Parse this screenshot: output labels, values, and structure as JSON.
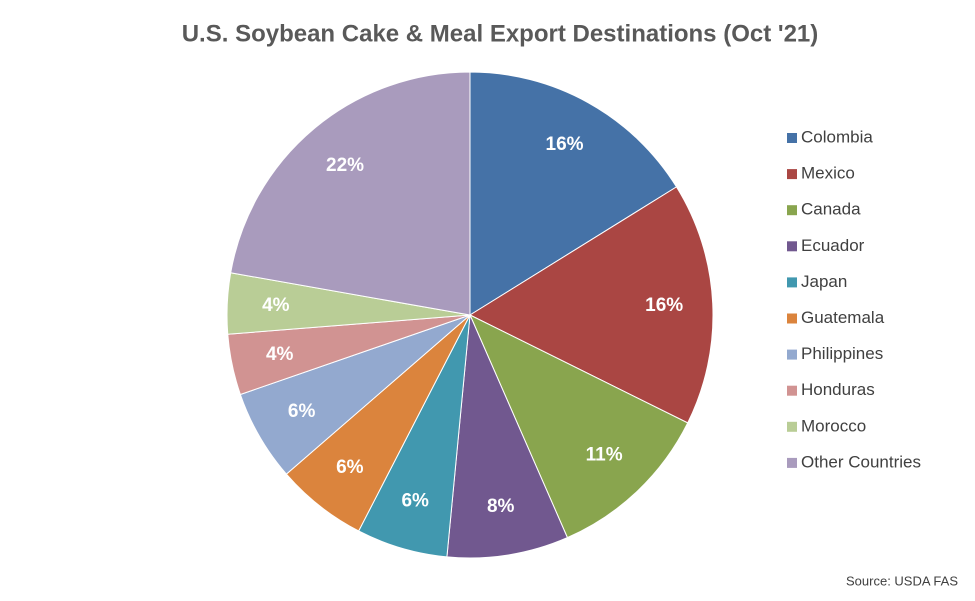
{
  "chart_data": {
    "type": "pie",
    "title": "U.S. Soybean Cake & Meal Export Destinations (Oct '21)",
    "categories": [
      "Colombia",
      "Mexico",
      "Canada",
      "Ecuador",
      "Japan",
      "Guatemala",
      "Philippines",
      "Honduras",
      "Morocco",
      "Other Countries"
    ],
    "values": [
      16,
      16,
      11,
      8,
      6,
      6,
      6,
      4,
      4,
      22
    ],
    "value_labels": [
      "16%",
      "16%",
      "11%",
      "8%",
      "6%",
      "6%",
      "6%",
      "4%",
      "4%",
      "22%"
    ],
    "colors": [
      "#4572a7",
      "#aa4643",
      "#89a54e",
      "#71588f",
      "#4198af",
      "#db843d",
      "#93a9cf",
      "#d19392",
      "#b9cd96",
      "#a99bbd"
    ],
    "legend": "right",
    "source": "Source: USDA FAS"
  }
}
